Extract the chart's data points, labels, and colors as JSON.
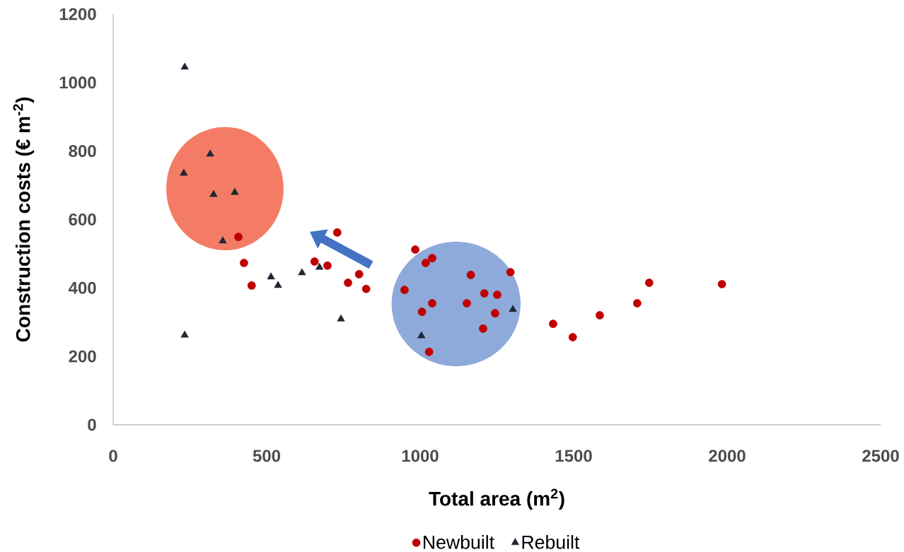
{
  "chart_data": {
    "type": "scatter",
    "xlabel": "Total area (m$^{2}$)",
    "ylabel": "Construction costs (€ m$^{-2}$)",
    "xlim": [
      0,
      2500
    ],
    "xticks": [
      0,
      500,
      1000,
      1500,
      2000,
      2500
    ],
    "ylim": [
      0,
      1200
    ],
    "yticks": [
      0,
      200,
      400,
      600,
      800,
      1000,
      1200
    ],
    "grid": false,
    "legend": "bottom",
    "series": [
      {
        "name": "Newbuilt",
        "color": "#c00000",
        "marker": "circle",
        "x": [
          408,
          426,
          451,
          730,
          656,
          698,
          801,
          765,
          824,
          984,
          1018,
          1039,
          949,
          1039,
          1006,
          1029,
          1165,
          1152,
          1209,
          1251,
          1244,
          1205,
          1294,
          1433,
          1497,
          1585,
          1707,
          1746,
          1983
        ],
        "values": [
          549,
          473,
          407,
          562,
          477,
          465,
          440,
          415,
          397,
          512,
          473,
          487,
          394,
          355,
          330,
          213,
          438,
          355,
          384,
          380,
          326,
          281,
          446,
          295,
          256,
          320,
          355,
          415,
          411
        ]
      },
      {
        "name": "Rebuilt",
        "color": "#1f2633",
        "marker": "triangle",
        "x": [
          233,
          316,
          230,
          327,
          396,
          357,
          233,
          514,
          537,
          615,
          672,
          742,
          1302,
          1004
        ],
        "values": [
          1045,
          791,
          735,
          673,
          679,
          537,
          262,
          432,
          407,
          444,
          460,
          309,
          337,
          260
        ]
      }
    ]
  }
}
